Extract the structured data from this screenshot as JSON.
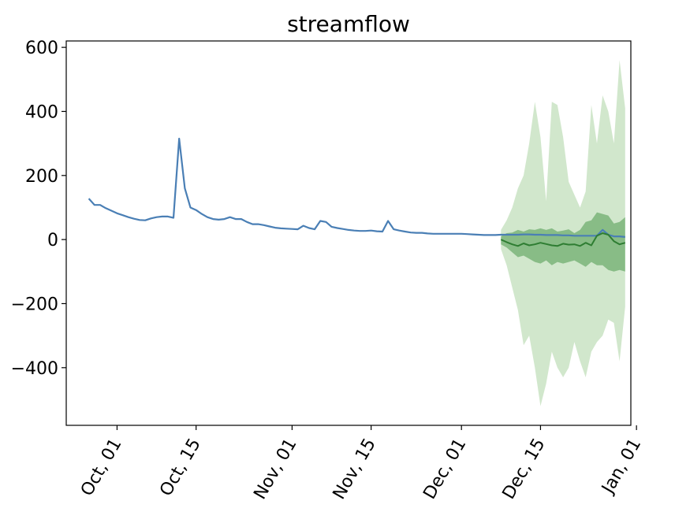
{
  "chart_data": {
    "type": "line",
    "title": "streamflow",
    "xlabel": "",
    "ylabel": "",
    "xlim": [
      "2024-09-22",
      "2024-12-31"
    ],
    "ylim": [
      -580,
      620
    ],
    "y_ticks": [
      600,
      400,
      200,
      0,
      -200,
      -400
    ],
    "x_ticks": [
      {
        "date": "2024-10-01",
        "label": "Oct, 01"
      },
      {
        "date": "2024-10-15",
        "label": "Oct, 15"
      },
      {
        "date": "2024-11-01",
        "label": "Nov, 01"
      },
      {
        "date": "2024-11-15",
        "label": "Nov, 15"
      },
      {
        "date": "2024-12-01",
        "label": "Dec, 01"
      },
      {
        "date": "2024-12-15",
        "label": "Dec, 15"
      },
      {
        "date": "2025-01-01",
        "label": "Jan, 01"
      }
    ],
    "grid": false,
    "legend": "none",
    "colors": {
      "observed": "#4a7fb5",
      "forecast_median": "#2e7d32",
      "band_inner": "#6fae6f",
      "band_outer": "#c9e3c3"
    },
    "observed": {
      "x": [
        "2024-09-26",
        "2024-09-27",
        "2024-09-28",
        "2024-09-29",
        "2024-09-30",
        "2024-10-01",
        "2024-10-02",
        "2024-10-03",
        "2024-10-04",
        "2024-10-05",
        "2024-10-06",
        "2024-10-07",
        "2024-10-08",
        "2024-10-09",
        "2024-10-10",
        "2024-10-11",
        "2024-10-12",
        "2024-10-13",
        "2024-10-14",
        "2024-10-15",
        "2024-10-16",
        "2024-10-17",
        "2024-10-18",
        "2024-10-19",
        "2024-10-20",
        "2024-10-21",
        "2024-10-22",
        "2024-10-23",
        "2024-10-24",
        "2024-10-25",
        "2024-10-26",
        "2024-10-27",
        "2024-10-28",
        "2024-10-29",
        "2024-10-30",
        "2024-10-31",
        "2024-11-01",
        "2024-11-02",
        "2024-11-03",
        "2024-11-04",
        "2024-11-05",
        "2024-11-06",
        "2024-11-07",
        "2024-11-08",
        "2024-11-09",
        "2024-11-10",
        "2024-11-11",
        "2024-11-12",
        "2024-11-13",
        "2024-11-14",
        "2024-11-15",
        "2024-11-16",
        "2024-11-17",
        "2024-11-18",
        "2024-11-19",
        "2024-11-20",
        "2024-11-21",
        "2024-11-22",
        "2024-11-23",
        "2024-11-24",
        "2024-11-25",
        "2024-11-26",
        "2024-11-27",
        "2024-11-28",
        "2024-11-29",
        "2024-11-30",
        "2024-12-01",
        "2024-12-02",
        "2024-12-03",
        "2024-12-04",
        "2024-12-05",
        "2024-12-06",
        "2024-12-07",
        "2024-12-08",
        "2024-12-09",
        "2024-12-10",
        "2024-12-11",
        "2024-12-12",
        "2024-12-13",
        "2024-12-14",
        "2024-12-15",
        "2024-12-16",
        "2024-12-17",
        "2024-12-18",
        "2024-12-19",
        "2024-12-20",
        "2024-12-21",
        "2024-12-22",
        "2024-12-23",
        "2024-12-24",
        "2024-12-25",
        "2024-12-26",
        "2024-12-27",
        "2024-12-28",
        "2024-12-29",
        "2024-12-30"
      ],
      "y": [
        128,
        108,
        108,
        98,
        90,
        82,
        76,
        70,
        65,
        61,
        60,
        66,
        70,
        72,
        72,
        68,
        315,
        160,
        100,
        92,
        80,
        70,
        64,
        62,
        64,
        70,
        64,
        64,
        55,
        48,
        48,
        45,
        41,
        37,
        35,
        34,
        33,
        32,
        43,
        36,
        32,
        58,
        55,
        40,
        36,
        33,
        30,
        28,
        27,
        27,
        28,
        26,
        25,
        58,
        32,
        28,
        25,
        22,
        21,
        21,
        19,
        18,
        18,
        18,
        18,
        18,
        18,
        17,
        16,
        15,
        14,
        14,
        14,
        15,
        15,
        15,
        15,
        16,
        16,
        15,
        15,
        14,
        14,
        14,
        13,
        13,
        12,
        12,
        12,
        12,
        12,
        30,
        15,
        10,
        10,
        8
      ]
    },
    "forecast": {
      "x": [
        "2024-12-08",
        "2024-12-09",
        "2024-12-10",
        "2024-12-11",
        "2024-12-12",
        "2024-12-13",
        "2024-12-14",
        "2024-12-15",
        "2024-12-16",
        "2024-12-17",
        "2024-12-18",
        "2024-12-19",
        "2024-12-20",
        "2024-12-21",
        "2024-12-22",
        "2024-12-23",
        "2024-12-24",
        "2024-12-25",
        "2024-12-26",
        "2024-12-27",
        "2024-12-28",
        "2024-12-29",
        "2024-12-30"
      ],
      "median": [
        0,
        -8,
        -15,
        -20,
        -12,
        -18,
        -15,
        -10,
        -14,
        -18,
        -20,
        -13,
        -16,
        -15,
        -20,
        -10,
        -18,
        12,
        20,
        15,
        -5,
        -15,
        -10
      ],
      "inner_upper": [
        10,
        20,
        22,
        30,
        25,
        32,
        30,
        35,
        30,
        35,
        25,
        28,
        32,
        20,
        30,
        55,
        60,
        85,
        80,
        75,
        50,
        55,
        70
      ],
      "inner_lower": [
        -15,
        -25,
        -40,
        -55,
        -50,
        -60,
        -70,
        -75,
        -65,
        -80,
        -70,
        -75,
        -70,
        -65,
        -75,
        -85,
        -70,
        -80,
        -80,
        -95,
        -100,
        -95,
        -100
      ],
      "outer_upper": [
        30,
        60,
        100,
        160,
        200,
        300,
        430,
        320,
        120,
        430,
        420,
        320,
        180,
        140,
        100,
        150,
        420,
        300,
        450,
        400,
        300,
        560,
        410
      ],
      "outer_lower": [
        -30,
        -80,
        -150,
        -220,
        -330,
        -300,
        -400,
        -520,
        -450,
        -350,
        -400,
        -430,
        -400,
        -320,
        -380,
        -430,
        -350,
        -320,
        -300,
        -250,
        -260,
        -380,
        -210
      ]
    }
  }
}
